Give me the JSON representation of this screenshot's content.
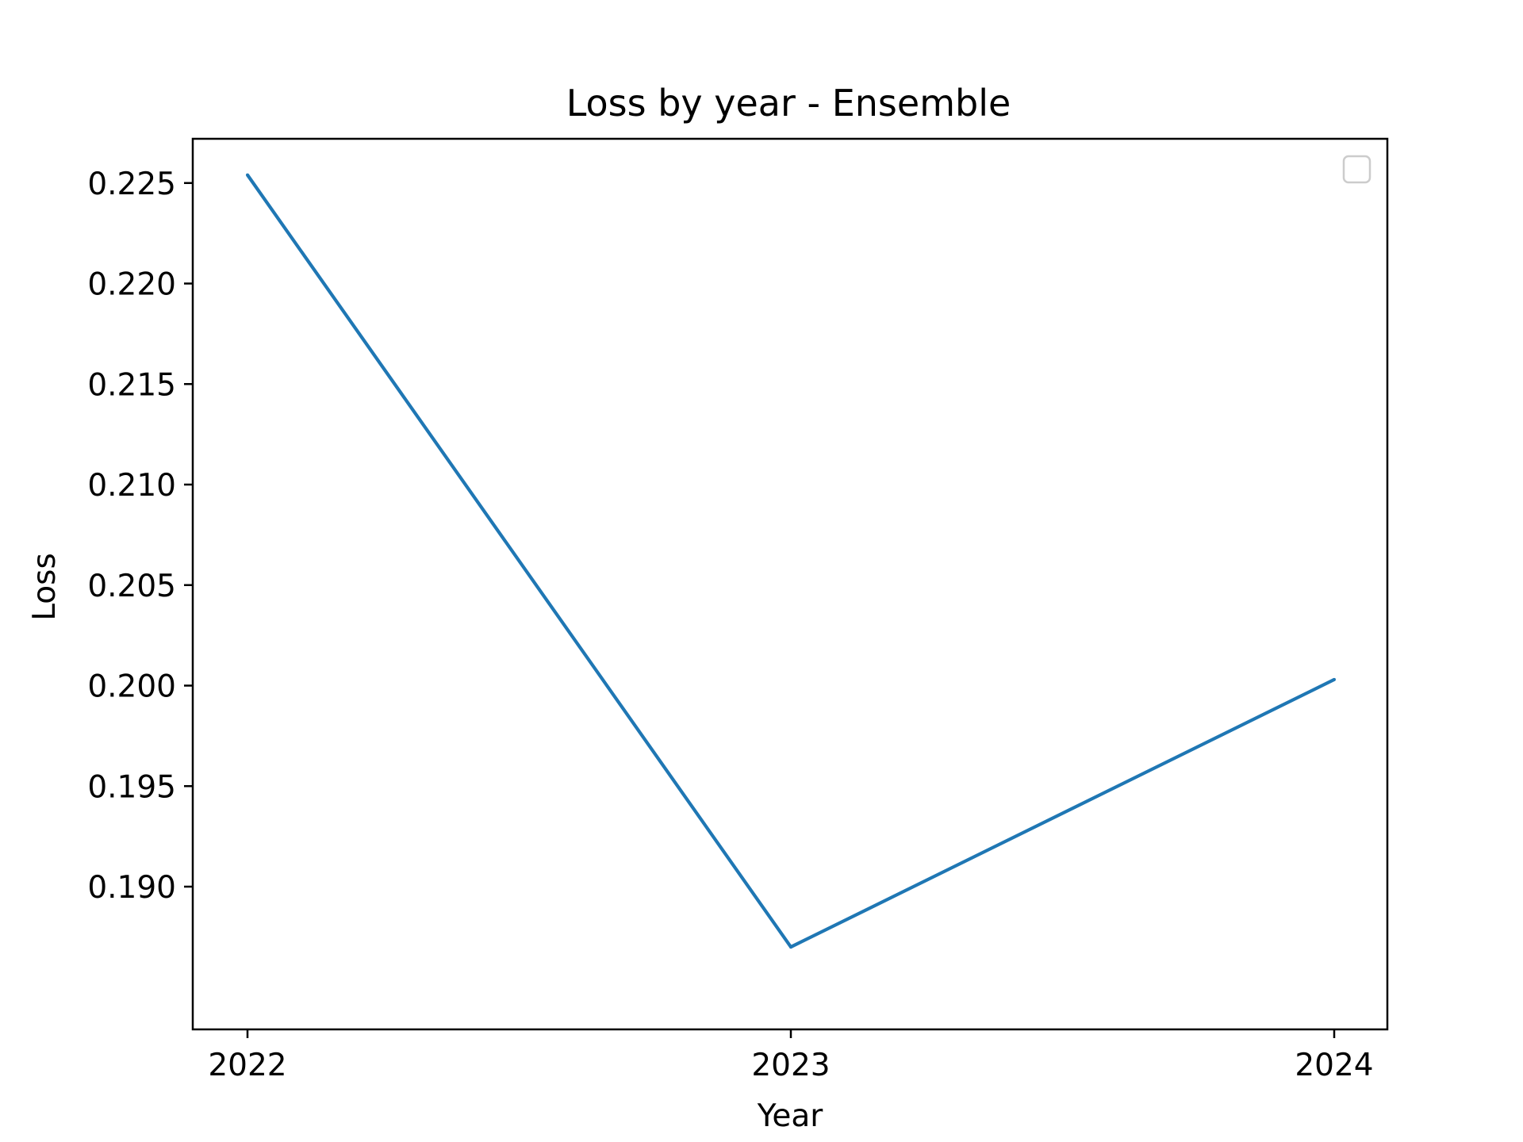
{
  "chart_data": {
    "type": "line",
    "title": "Loss by year - Ensemble",
    "xlabel": "Year",
    "ylabel": "Loss",
    "x": [
      "2022",
      "2023",
      "2024"
    ],
    "series": [
      {
        "values": [
          0.2254,
          0.187,
          0.2003
        ],
        "color": "#1f77b4"
      }
    ],
    "xlim": [
      1.9,
      2.1
    ],
    "ylim": [
      0.1829,
      0.2272
    ],
    "x_ticks": [
      "2022",
      "2023",
      "2024"
    ],
    "y_ticks": [
      "0.190",
      "0.195",
      "0.200",
      "0.205",
      "0.210",
      "0.215",
      "0.220",
      "0.225"
    ],
    "grid": false,
    "legend": {
      "placement": "top-right",
      "entries": []
    }
  }
}
